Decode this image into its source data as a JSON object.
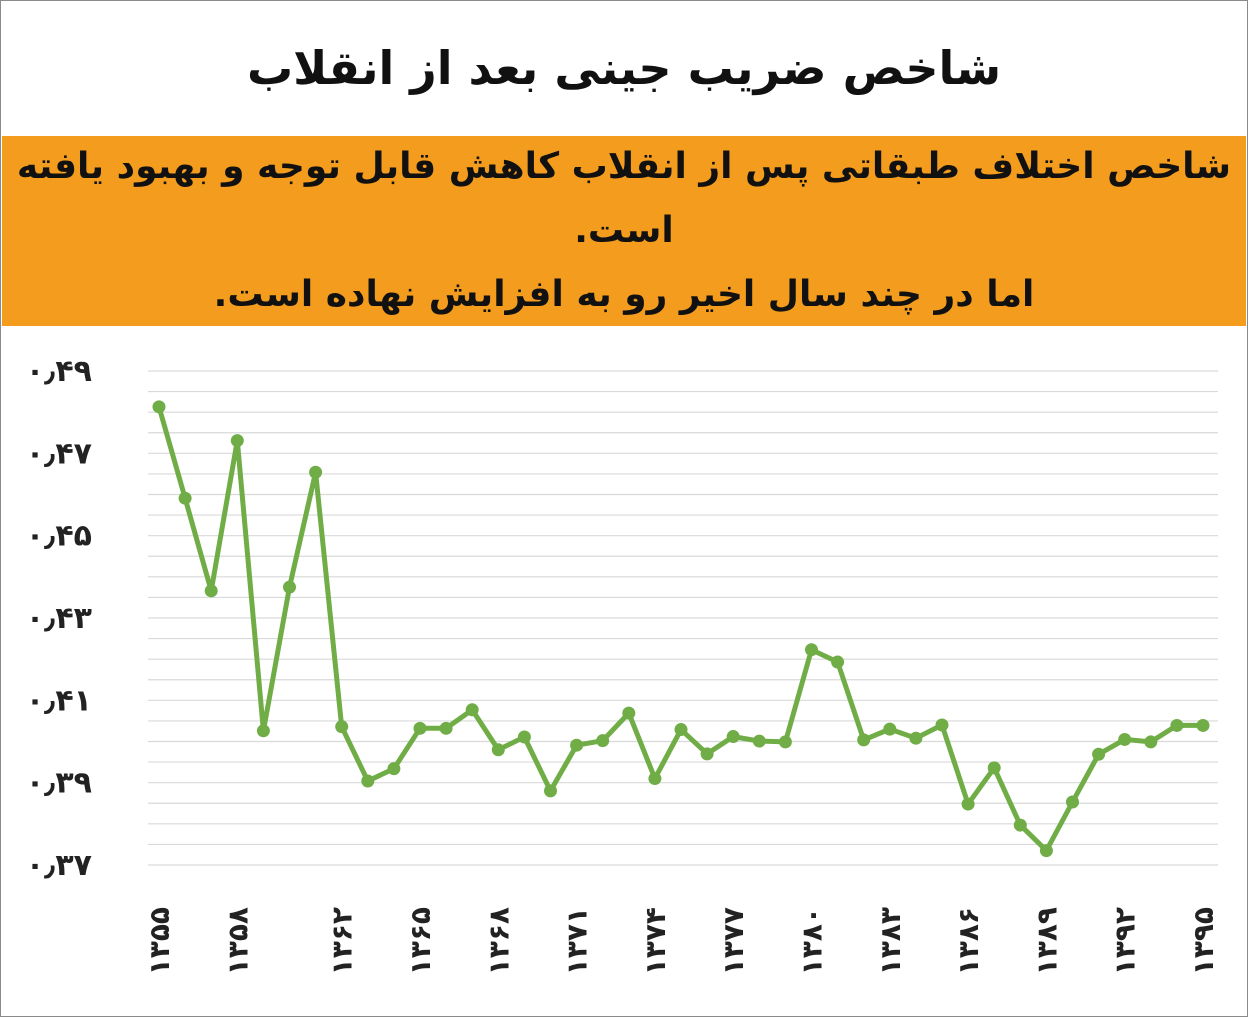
{
  "title": "شاخص ضریب جینی بعد از انقلاب",
  "banner": {
    "line1": "شاخص اختلاف طبقاتی پس از انقلاب کاهش قابل توجه و بهبود یافته است.",
    "line2": "اما در چند سال اخیر رو به افزایش نهاده است."
  },
  "chart_data": {
    "type": "line",
    "title": "شاخص ضریب جینی بعد از انقلاب",
    "xlabel": "",
    "ylabel": "",
    "ylim": [
      0.37,
      0.49
    ],
    "y_ticks": [
      0.49,
      0.47,
      0.45,
      0.43,
      0.41,
      0.39,
      0.37
    ],
    "y_tick_labels": [
      "۰٫۴۹",
      "۰٫۴۷",
      "۰٫۴۵",
      "۰٫۴۳",
      "۰٫۴۱",
      "۰٫۳۹",
      "۰٫۳۷"
    ],
    "x_tick_labels": [
      "۱۳۵۵",
      "۱۳۵۸",
      "۱۳۶۲",
      "۱۳۶۵",
      "۱۳۶۸",
      "۱۳۷۱",
      "۱۳۷۴",
      "۱۳۷۷",
      "۱۳۸۰",
      "۱۳۸۳",
      "۱۳۸۶",
      "۱۳۸۹",
      "۱۳۹۲",
      "۱۳۹۵"
    ],
    "x_tick_years": [
      1355,
      1358,
      1362,
      1365,
      1368,
      1371,
      1374,
      1377,
      1380,
      1383,
      1386,
      1389,
      1392,
      1395
    ],
    "grid": true,
    "line_color": "#70ad47",
    "x": [
      1355,
      1356,
      1357,
      1358,
      1359,
      1360,
      1361,
      1362,
      1363,
      1364,
      1365,
      1366,
      1367,
      1368,
      1369,
      1370,
      1371,
      1372,
      1373,
      1374,
      1375,
      1376,
      1377,
      1378,
      1379,
      1380,
      1381,
      1382,
      1383,
      1384,
      1385,
      1386,
      1387,
      1388,
      1389,
      1390,
      1391,
      1392,
      1393,
      1394,
      1395
    ],
    "values": [
      0.4813,
      0.4591,
      0.4366,
      0.4731,
      0.4026,
      0.4375,
      0.4654,
      0.4036,
      0.3904,
      0.3934,
      0.4032,
      0.4032,
      0.4077,
      0.398,
      0.4011,
      0.388,
      0.3991,
      0.4002,
      0.4069,
      0.391,
      0.4029,
      0.397,
      0.4012,
      0.4001,
      0.3999,
      0.4223,
      0.4193,
      0.4004,
      0.403,
      0.4008,
      0.404,
      0.3848,
      0.3936,
      0.3797,
      0.3735,
      0.3853,
      0.3969,
      0.4005,
      0.3999,
      0.4039,
      0.4039
    ]
  }
}
